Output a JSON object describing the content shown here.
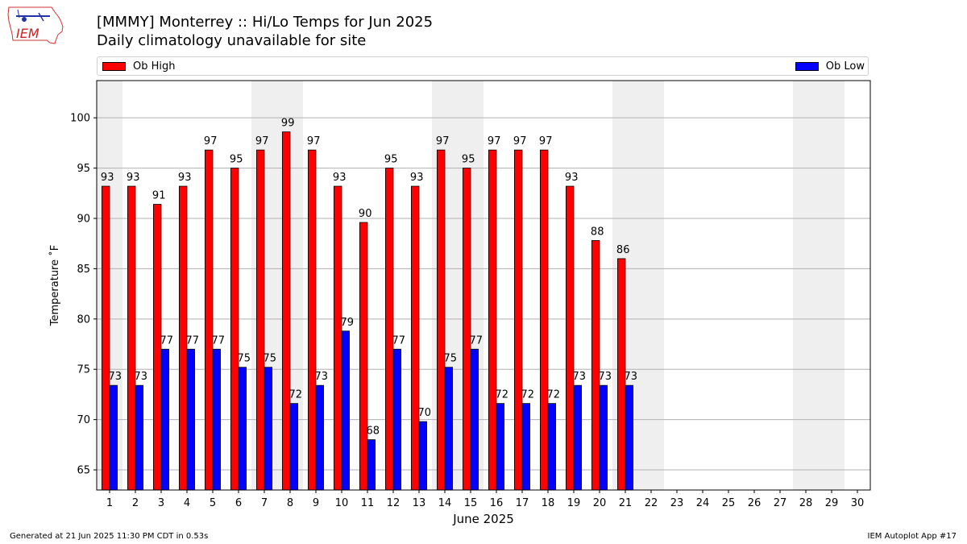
{
  "logo": {
    "text": "IEM"
  },
  "header": {
    "title": "[MMMY] Monterrey :: Hi/Lo Temps for Jun 2025",
    "subtitle": "Daily climatology unavailable for site"
  },
  "legend": {
    "placement": "top",
    "items": [
      {
        "label": "Ob High",
        "color": "#ff0000"
      },
      {
        "label": "Ob Low",
        "color": "#0000ff"
      }
    ]
  },
  "chart_data": {
    "type": "bar",
    "xlabel": "June 2025",
    "ylabel": "Temperature ˚F",
    "ylim": [
      63,
      103.7
    ],
    "yticks": [
      65,
      70,
      75,
      80,
      85,
      90,
      95,
      100
    ],
    "grid": "horizontal",
    "categories": [
      "1",
      "2",
      "3",
      "4",
      "5",
      "6",
      "7",
      "8",
      "9",
      "10",
      "11",
      "12",
      "13",
      "14",
      "15",
      "16",
      "17",
      "18",
      "19",
      "20",
      "21",
      "22",
      "23",
      "24",
      "25",
      "26",
      "27",
      "28",
      "29",
      "30"
    ],
    "weekend_shading": [
      [
        1,
        1
      ],
      [
        7,
        8
      ],
      [
        14,
        15
      ],
      [
        21,
        22
      ],
      [
        28,
        29
      ]
    ],
    "series": [
      {
        "name": "Ob High",
        "color": "#ff0000",
        "values": [
          93.2,
          93.2,
          91.4,
          93.2,
          96.8,
          95.0,
          96.8,
          98.6,
          96.8,
          93.2,
          89.6,
          95.0,
          93.2,
          96.8,
          95.0,
          96.8,
          96.8,
          96.8,
          93.2,
          87.8,
          86.0,
          null,
          null,
          null,
          null,
          null,
          null,
          null,
          null,
          null
        ],
        "labels": [
          "93",
          "93",
          "91",
          "93",
          "97",
          "95",
          "97",
          "99",
          "97",
          "93",
          "90",
          "95",
          "93",
          "97",
          "95",
          "97",
          "97",
          "97",
          "93",
          "88",
          "86",
          "",
          "",
          "",
          "",
          "",
          "",
          "",
          "",
          ""
        ]
      },
      {
        "name": "Ob Low",
        "color": "#0000ff",
        "values": [
          73.4,
          73.4,
          77.0,
          77.0,
          77.0,
          75.2,
          75.2,
          71.6,
          73.4,
          78.8,
          68.0,
          77.0,
          69.8,
          75.2,
          77.0,
          71.6,
          71.6,
          71.6,
          73.4,
          73.4,
          73.4,
          null,
          null,
          null,
          null,
          null,
          null,
          null,
          null,
          null
        ],
        "labels": [
          "73",
          "73",
          "77",
          "77",
          "77",
          "75",
          "75",
          "72",
          "73",
          "79",
          "68",
          "77",
          "70",
          "75",
          "77",
          "72",
          "72",
          "72",
          "73",
          "73",
          "73",
          "",
          "",
          "",
          "",
          "",
          "",
          "",
          "",
          ""
        ]
      }
    ]
  },
  "footer": {
    "generated": "Generated at 21 Jun 2025 11:30 PM CDT in 0.53s",
    "app": "IEM Autoplot App #17"
  }
}
